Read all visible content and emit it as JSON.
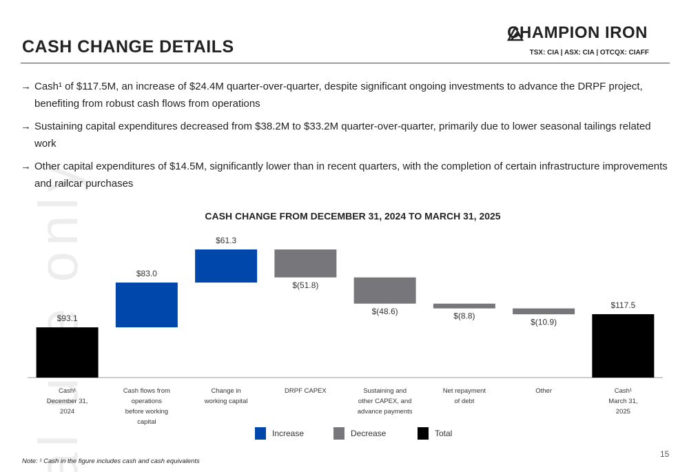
{
  "header": {
    "title": "CASH CHANGE DETAILS",
    "logo": "CHAMPION IRON",
    "tickers": "TSX: CIA  | ASX: CIA | OTCQX: CIAFF"
  },
  "bullets": [
    "Cash¹ of $117.5M, an increase of $24.4M quarter-over-quarter, despite significant ongoing investments to advance the DRPF project, benefiting from robust cash flows from operations",
    "Sustaining capital expenditures decreased from $38.2M to $33.2M quarter-over-quarter, primarily due to lower seasonal tailings related work",
    "Other capital expenditures of $14.5M, significantly lower than in recent quarters, with the completion of certain infrastructure improvements and railcar purchases"
  ],
  "chart_data": {
    "type": "waterfall",
    "title": "CASH CHANGE FROM DECEMBER 31, 2024 TO MARCH 31, 2025",
    "categories": [
      "Cash¹\nDecember 31,\n2024",
      "Cash flows from\noperations\nbefore working\ncapital",
      "Change in\nworking capital",
      "DRPF CAPEX",
      "Sustaining and\nother CAPEX, and\nadvance payments",
      "Net repayment\nof debt",
      "Other",
      "Cash¹\nMarch 31,\n2025"
    ],
    "values": [
      93.1,
      83.0,
      61.3,
      -51.8,
      -48.6,
      -8.8,
      -10.9,
      117.5
    ],
    "value_labels": [
      "$93.1",
      "$83.0",
      "$61.3",
      "$(51.8)",
      "$(48.6)",
      "$(8.8)",
      "$(10.9)",
      "$117.5"
    ],
    "kinds": [
      "Total",
      "Increase",
      "Increase",
      "Decrease",
      "Decrease",
      "Decrease",
      "Decrease",
      "Total"
    ],
    "legend": [
      {
        "name": "Increase",
        "color": "#0047ab"
      },
      {
        "name": "Decrease",
        "color": "#77777b"
      },
      {
        "name": "Total",
        "color": "#000000"
      }
    ],
    "ylim": [
      0,
      240
    ]
  },
  "note": "Note: ¹ Cash in the figure includes cash and cash equivalents",
  "page_number": "15",
  "watermark": "al use only"
}
